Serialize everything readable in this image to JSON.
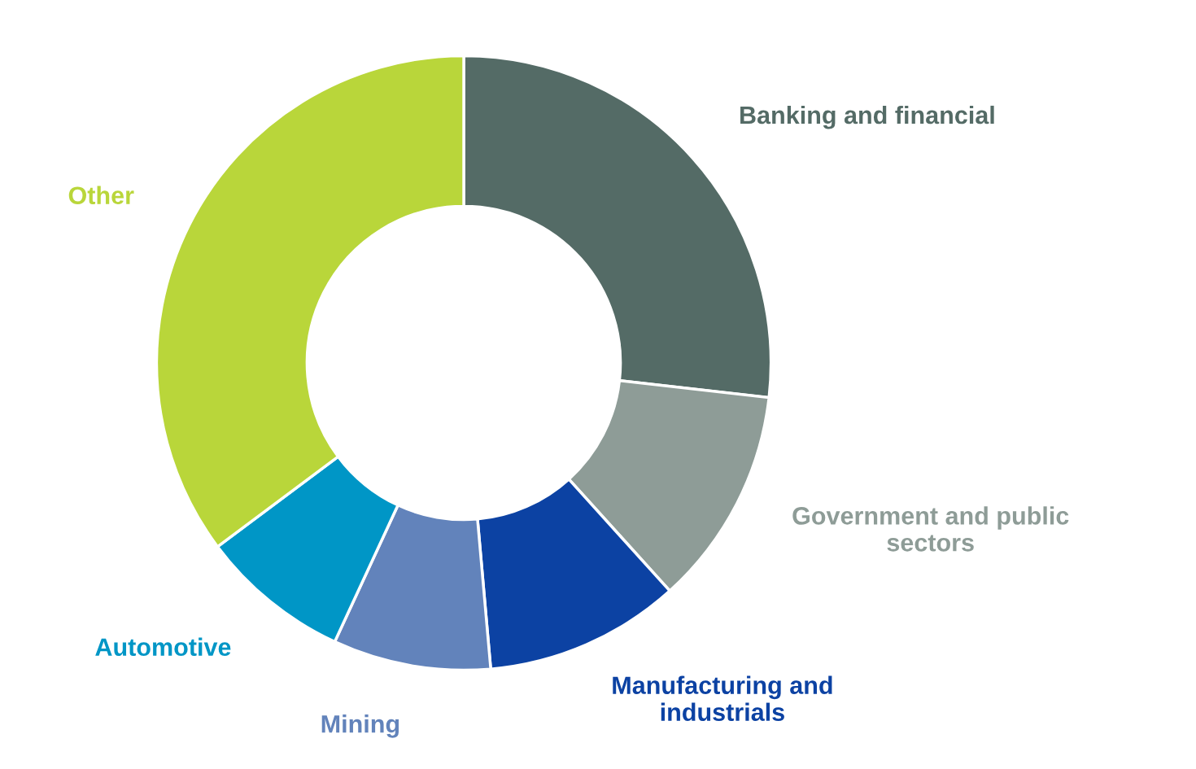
{
  "chart_data": {
    "type": "donut",
    "categories": [
      "Banking and financial",
      "Government and public\nsectors",
      "Manufacturing and\nindustrials",
      "Mining",
      "Automotive",
      "Other"
    ],
    "values": [
      26.8,
      11.5,
      10.3,
      8.3,
      7.9,
      35.2
    ],
    "colors": [
      "#546b66",
      "#8e9c97",
      "#0c42a3",
      "#6283bb",
      "#0096c6",
      "#b9d63a"
    ],
    "legend": false
  }
}
